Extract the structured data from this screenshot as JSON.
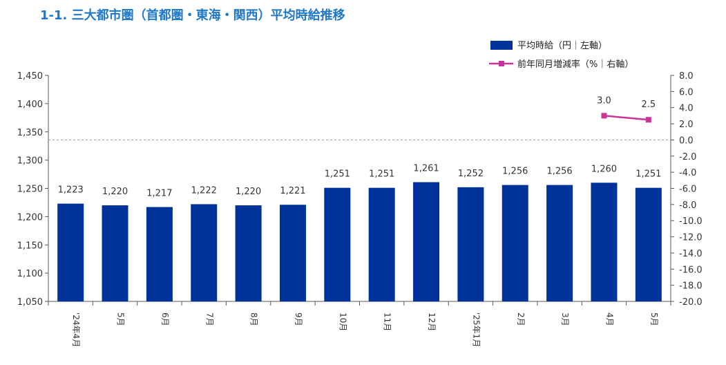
{
  "title": "1-1. 三大都市圏（首都圏・東海・関西）平均時給推移",
  "chart_data": {
    "type": "bar",
    "categories": [
      "'24年4月",
      "5月",
      "6月",
      "7月",
      "8月",
      "9月",
      "10月",
      "11月",
      "12月",
      "'25年1月",
      "2月",
      "3月",
      "4月",
      "5月"
    ],
    "series": [
      {
        "name": "平均時給（円｜左軸）",
        "type": "bar",
        "axis": "left",
        "color": "#003399",
        "values": [
          1223,
          1220,
          1217,
          1222,
          1220,
          1221,
          1251,
          1251,
          1261,
          1252,
          1256,
          1256,
          1260,
          1251
        ],
        "labels": [
          "1,223",
          "1,220",
          "1,217",
          "1,222",
          "1,220",
          "1,221",
          "1,251",
          "1,251",
          "1,261",
          "1,252",
          "1,256",
          "1,256",
          "1,260",
          "1,251"
        ]
      },
      {
        "name": "前年同月増減率（%｜右軸）",
        "type": "line",
        "axis": "right",
        "color": "#cc3399",
        "values": [
          null,
          null,
          null,
          null,
          null,
          null,
          null,
          null,
          null,
          null,
          null,
          null,
          3.0,
          2.5
        ],
        "labels": [
          null,
          null,
          null,
          null,
          null,
          null,
          null,
          null,
          null,
          null,
          null,
          null,
          "3.0",
          "2.5"
        ]
      }
    ],
    "y_left": {
      "min": 1050,
      "max": 1450,
      "ticks": [
        1050,
        1100,
        1150,
        1200,
        1250,
        1300,
        1350,
        1400,
        1450
      ],
      "tick_labels": [
        "1,050",
        "1,100",
        "1,150",
        "1,200",
        "1,250",
        "1,300",
        "1,350",
        "1,400",
        "1,450"
      ]
    },
    "y_right": {
      "min": -20,
      "max": 8,
      "ticks": [
        8,
        6,
        4,
        2,
        0,
        -2,
        -4,
        -6,
        -8,
        -10,
        -12,
        -14,
        -16,
        -18,
        -20
      ],
      "tick_labels": [
        "8.0",
        "6.0",
        "4.0",
        "2.0",
        "0.0",
        "-2.0",
        "-4.0",
        "-6.0",
        "-8.0",
        "-10.0",
        "-12.0",
        "-14.0",
        "-16.0",
        "-18.0",
        "-20.0"
      ]
    },
    "zero_line": "dashed",
    "grid": false,
    "legend_position": "top-right"
  }
}
